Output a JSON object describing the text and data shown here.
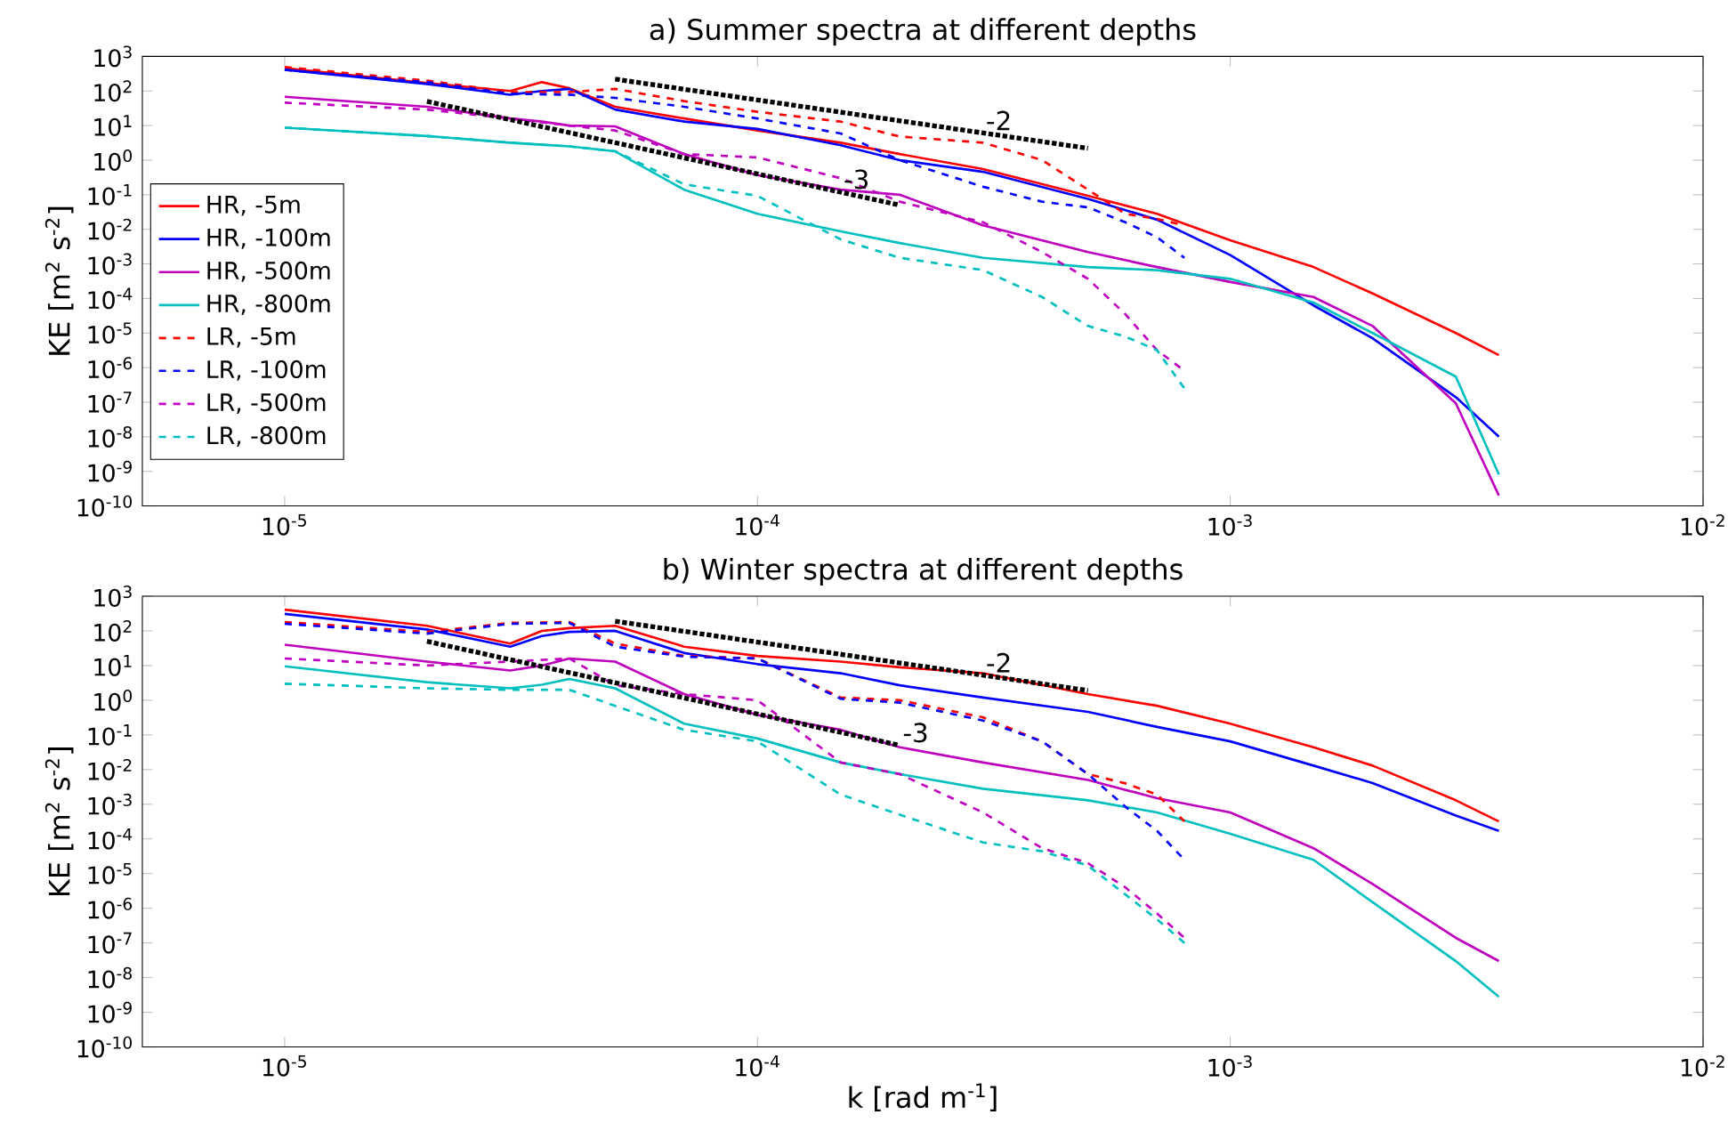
{
  "chart_data": [
    {
      "type": "line",
      "title": "a) Summer spectra at different depths",
      "ylabel": "KE [m$^{2}$ s$^{-2}$]",
      "log": "xy",
      "legend": "left",
      "marker": "none",
      "xlim": [
        5e-06,
        0.01
      ],
      "ylim": [
        1e-10,
        1000
      ],
      "xticks": [
        {
          "value": 1e-05,
          "label": "10$^{-5}$"
        },
        {
          "value": 0.0001,
          "label": "10$^{-4}$"
        },
        {
          "value": 0.001,
          "label": "10$^{-3}$"
        },
        {
          "value": 0.01,
          "label": "10$^{-2}$"
        }
      ],
      "yticks": [
        {
          "value": 1000,
          "label": "10$^{3}$"
        },
        {
          "value": 100,
          "label": "10$^{2}$"
        },
        {
          "value": 10,
          "label": "10$^{1}$"
        },
        {
          "value": 1,
          "label": "10$^{0}$"
        },
        {
          "value": 0.1,
          "label": "10$^{-1}$"
        },
        {
          "value": 0.01,
          "label": "10$^{-2}$"
        },
        {
          "value": 0.001,
          "label": "10$^{-3}$"
        },
        {
          "value": 0.0001,
          "label": "10$^{-4}$"
        },
        {
          "value": 1e-05,
          "label": "10$^{-5}$"
        },
        {
          "value": 1e-06,
          "label": "10$^{-6}$"
        },
        {
          "value": 1e-07,
          "label": "10$^{-7}$"
        },
        {
          "value": 1e-08,
          "label": "10$^{-8}$"
        },
        {
          "value": 1e-09,
          "label": "10$^{-9}$"
        },
        {
          "value": 1e-10,
          "label": "10$^{-10}$"
        }
      ],
      "series": [
        {
          "name": "HR, -5m",
          "color": "#ff0000",
          "line_style": "solid",
          "x": [
            1e-05,
            2e-05,
            3e-05,
            3.5e-05,
            4e-05,
            5e-05,
            7e-05,
            0.0001,
            0.00015,
            0.0002,
            0.0003,
            0.0005,
            0.0007,
            0.001,
            0.0015,
            0.002,
            0.003,
            0.0037
          ],
          "values": [
            460,
            170,
            100,
            180,
            120,
            35,
            16,
            7.2,
            3.2,
            1.5,
            0.55,
            0.093,
            0.028,
            0.0048,
            0.00081,
            0.00014,
            1e-05,
            2.3e-06
          ]
        },
        {
          "name": "HR, -100m",
          "color": "#0000ff",
          "line_style": "solid",
          "x": [
            1e-05,
            2e-05,
            3e-05,
            3.5e-05,
            4e-05,
            5e-05,
            7e-05,
            0.0001,
            0.00015,
            0.0002,
            0.0003,
            0.0005,
            0.0007,
            0.001,
            0.0015,
            0.002,
            0.003,
            0.0037
          ],
          "values": [
            410,
            160,
            78,
            100,
            115,
            29,
            13,
            8,
            2.7,
            1.0,
            0.46,
            0.076,
            0.019,
            0.0018,
            6.3e-05,
            7.1e-06,
            1.4e-07,
            1e-08
          ]
        },
        {
          "name": "HR, -500m",
          "color": "#bf00bf",
          "line_style": "solid",
          "x": [
            1e-05,
            2e-05,
            3e-05,
            3.5e-05,
            4e-05,
            5e-05,
            7e-05,
            0.0001,
            0.00015,
            0.0002,
            0.0003,
            0.0005,
            0.0007,
            0.001,
            0.0015,
            0.002,
            0.003,
            0.0037
          ],
          "values": [
            68,
            35,
            16,
            13,
            10,
            9.5,
            1.5,
            0.37,
            0.14,
            0.1,
            0.013,
            0.0022,
            0.00081,
            0.0003,
            0.00011,
            1.6e-05,
            9.3e-08,
            2e-10
          ]
        },
        {
          "name": "HR, -800m",
          "color": "#00bfbf",
          "line_style": "solid",
          "x": [
            1e-05,
            2e-05,
            3e-05,
            3.5e-05,
            4e-05,
            5e-05,
            7e-05,
            0.0001,
            0.00015,
            0.0002,
            0.0003,
            0.0005,
            0.0007,
            0.001,
            0.0015,
            0.002,
            0.003,
            0.0037
          ],
          "values": [
            8.7,
            5,
            3.2,
            2.8,
            2.5,
            1.8,
            0.14,
            0.028,
            0.0087,
            0.004,
            0.0015,
            0.00081,
            0.00066,
            0.00037,
            7.6e-05,
            1e-05,
            5.5e-07,
            8.1e-10
          ]
        },
        {
          "name": "LR, -5m",
          "color": "#ff0000",
          "line_style": "dashed",
          "x": [
            1e-05,
            2e-05,
            3e-05,
            4e-05,
            5e-05,
            7e-05,
            0.0001,
            0.00015,
            0.0002,
            0.0003,
            0.0004,
            0.0005,
            0.0006,
            0.0007,
            0.0008
          ],
          "values": [
            490,
            200,
            93,
            93,
            115,
            51,
            25,
            13,
            4.8,
            3.2,
            1.0,
            0.14,
            0.028,
            0.02,
            0.013
          ]
        },
        {
          "name": "LR, -100m",
          "color": "#0000ff",
          "line_style": "dashed",
          "x": [
            1e-05,
            2e-05,
            3e-05,
            4e-05,
            5e-05,
            7e-05,
            0.0001,
            0.00015,
            0.0002,
            0.0003,
            0.0004,
            0.0005,
            0.0006,
            0.0007,
            0.0008
          ],
          "values": [
            410,
            180,
            83,
            78,
            63,
            35,
            16,
            5.9,
            1.0,
            0.17,
            0.063,
            0.043,
            0.016,
            0.0059,
            0.0015
          ]
        },
        {
          "name": "LR, -500m",
          "color": "#bf00bf",
          "line_style": "dashed",
          "x": [
            1e-05,
            2e-05,
            3e-05,
            4e-05,
            5e-05,
            7e-05,
            0.0001,
            0.00015,
            0.0002,
            0.0003,
            0.0004,
            0.0005,
            0.0006,
            0.0007,
            0.0008
          ],
          "values": [
            46,
            29,
            16,
            10,
            7.2,
            1.5,
            1.2,
            0.3,
            0.063,
            0.016,
            0.0022,
            0.00037,
            3.5e-05,
            3.2e-06,
            8.1e-07
          ]
        },
        {
          "name": "LR, -800m",
          "color": "#00bfbf",
          "line_style": "dashed",
          "x": [
            1e-05,
            2e-05,
            3e-05,
            4e-05,
            5e-05,
            7e-05,
            0.0001,
            0.00015,
            0.0002,
            0.0003,
            0.0004,
            0.0005,
            0.0006,
            0.0007,
            0.0008
          ],
          "values": [
            8.7,
            5,
            3.2,
            2.5,
            1.8,
            0.2,
            0.093,
            0.0051,
            0.0015,
            0.00066,
            0.00011,
            1.6e-05,
            7.9e-06,
            3.2e-06,
            2.5e-07
          ]
        },
        {
          "color": "#000000",
          "line_style": "dotted",
          "x": [
            5e-05,
            0.0005
          ],
          "values": [
            220,
            2.2
          ]
        },
        {
          "color": "#000000",
          "line_style": "dotted",
          "x": [
            2e-05,
            0.0002
          ],
          "values": [
            50,
            0.05
          ]
        }
      ],
      "annotations": [
        {
          "text": "-2",
          "x": 0.0003,
          "y": 6.1
        },
        {
          "text": "-3",
          "x": 0.00015,
          "y": 0.12
        }
      ]
    },
    {
      "type": "line",
      "title": "b) Winter spectra at different depths",
      "xlabel": "k [rad m$^{-1}$]",
      "ylabel": "KE [m$^{2}$ s$^{-2}$]",
      "log": "xy",
      "marker": "none",
      "xlim": [
        5e-06,
        0.01
      ],
      "ylim": [
        1e-10,
        1000
      ],
      "xticks": [
        {
          "value": 1e-05,
          "label": "10$^{-5}$"
        },
        {
          "value": 0.0001,
          "label": "10$^{-4}$"
        },
        {
          "value": 0.001,
          "label": "10$^{-3}$"
        },
        {
          "value": 0.01,
          "label": "10$^{-2}$"
        }
      ],
      "yticks": [
        {
          "value": 1000,
          "label": "10$^{3}$"
        },
        {
          "value": 100,
          "label": "10$^{2}$"
        },
        {
          "value": 10,
          "label": "10$^{1}$"
        },
        {
          "value": 1,
          "label": "10$^{0}$"
        },
        {
          "value": 0.1,
          "label": "10$^{-1}$"
        },
        {
          "value": 0.01,
          "label": "10$^{-2}$"
        },
        {
          "value": 0.001,
          "label": "10$^{-3}$"
        },
        {
          "value": 0.0001,
          "label": "10$^{-4}$"
        },
        {
          "value": 1e-05,
          "label": "10$^{-5}$"
        },
        {
          "value": 1e-06,
          "label": "10$^{-6}$"
        },
        {
          "value": 1e-07,
          "label": "10$^{-7}$"
        },
        {
          "value": 1e-08,
          "label": "10$^{-8}$"
        },
        {
          "value": 1e-09,
          "label": "10$^{-9}$"
        },
        {
          "value": 1e-10,
          "label": "10$^{-10}$"
        }
      ],
      "series": [
        {
          "color": "#ff0000",
          "line_style": "solid",
          "x": [
            1e-05,
            2e-05,
            3e-05,
            3.5e-05,
            4e-05,
            5e-05,
            7e-05,
            0.0001,
            0.00015,
            0.0002,
            0.0003,
            0.0005,
            0.0007,
            0.001,
            0.0015,
            0.002,
            0.003,
            0.0037
          ],
          "values": [
            410,
            140,
            43,
            100,
            120,
            140,
            35,
            19,
            13,
            8.9,
            6,
            1.5,
            0.69,
            0.21,
            0.044,
            0.013,
            0.0013,
            0.00032
          ]
        },
        {
          "color": "#0000ff",
          "line_style": "solid",
          "x": [
            1e-05,
            2e-05,
            3e-05,
            3.5e-05,
            4e-05,
            5e-05,
            7e-05,
            0.0001,
            0.00015,
            0.0002,
            0.0003,
            0.0005,
            0.0007,
            0.001,
            0.0015,
            0.002,
            0.003,
            0.0037
          ],
          "values": [
            310,
            110,
            35,
            71,
            93,
            100,
            23,
            11,
            6,
            2.7,
            1.2,
            0.46,
            0.17,
            0.065,
            0.013,
            0.0041,
            0.00047,
            0.00017
          ]
        },
        {
          "color": "#bf00bf",
          "line_style": "solid",
          "x": [
            1e-05,
            2e-05,
            3e-05,
            3.5e-05,
            4e-05,
            5e-05,
            7e-05,
            0.0001,
            0.00015,
            0.0002,
            0.0003,
            0.0005,
            0.0007,
            0.001,
            0.0015,
            0.002,
            0.003,
            0.0037
          ],
          "values": [
            40,
            13,
            7.2,
            10,
            16,
            13,
            1.5,
            0.38,
            0.14,
            0.044,
            0.016,
            0.005,
            0.0015,
            0.00058,
            5.4e-05,
            5e-06,
            1.4e-07,
            3e-08
          ]
        },
        {
          "color": "#00bfbf",
          "line_style": "solid",
          "x": [
            1e-05,
            2e-05,
            3e-05,
            3.5e-05,
            4e-05,
            5e-05,
            7e-05,
            0.0001,
            0.00015,
            0.0002,
            0.0003,
            0.0005,
            0.0007,
            0.001,
            0.0015,
            0.002,
            0.003,
            0.0037
          ],
          "values": [
            9.5,
            3.3,
            2.2,
            2.8,
            4.1,
            2.2,
            0.21,
            0.079,
            0.016,
            0.0074,
            0.0028,
            0.0013,
            0.00058,
            0.00014,
            2.5e-05,
            1.5e-06,
            3e-08,
            2.8e-09
          ]
        },
        {
          "color": "#ff0000",
          "line_style": "dashed",
          "x": [
            1e-05,
            2e-05,
            3e-05,
            4e-05,
            5e-05,
            7e-05,
            0.0001,
            0.00015,
            0.0002,
            0.0003,
            0.0004,
            0.0005,
            0.0006,
            0.0007,
            0.0008
          ],
          "values": [
            180,
            93,
            170,
            180,
            43,
            19,
            16,
            1.2,
            1.0,
            0.32,
            0.065,
            0.0074,
            0.004,
            0.0019,
            0.00032
          ]
        },
        {
          "color": "#0000ff",
          "line_style": "dashed",
          "x": [
            1e-05,
            2e-05,
            3e-05,
            4e-05,
            5e-05,
            7e-05,
            0.0001,
            0.00015,
            0.0002,
            0.0003,
            0.0004,
            0.0005,
            0.0006,
            0.0007,
            0.0008
          ],
          "values": [
            160,
            83,
            160,
            170,
            35,
            18,
            16,
            1.1,
            0.85,
            0.26,
            0.065,
            0.0074,
            0.00085,
            0.00017,
            2.5e-05
          ]
        },
        {
          "color": "#bf00bf",
          "line_style": "dashed",
          "x": [
            1e-05,
            2e-05,
            3e-05,
            4e-05,
            5e-05,
            7e-05,
            0.0001,
            0.00015,
            0.0002,
            0.0003,
            0.0004,
            0.0005,
            0.0006,
            0.0007,
            0.0008
          ],
          "values": [
            16,
            10,
            13,
            16,
            2.7,
            1.5,
            1.0,
            0.016,
            0.0074,
            0.00058,
            5.4e-05,
            2e-05,
            4e-06,
            7.1e-07,
            1.4e-07
          ]
        },
        {
          "color": "#00bfbf",
          "line_style": "dashed",
          "x": [
            1e-05,
            2e-05,
            3e-05,
            4e-05,
            5e-05,
            7e-05,
            0.0001,
            0.00015,
            0.0002,
            0.0003,
            0.0004,
            0.0005,
            0.0006,
            0.0007,
            0.0008
          ],
          "values": [
            3.0,
            2.2,
            2.0,
            2.0,
            0.69,
            0.14,
            0.065,
            0.0019,
            0.0005,
            7.9e-05,
            4.4e-05,
            1.7e-05,
            2.5e-06,
            4.8e-07,
            1e-07
          ]
        },
        {
          "color": "#000000",
          "line_style": "dotted",
          "x": [
            5e-05,
            0.0005
          ],
          "values": [
            190,
            1.9
          ]
        },
        {
          "color": "#000000",
          "line_style": "dotted",
          "x": [
            2e-05,
            0.0002
          ],
          "values": [
            50,
            0.05
          ]
        }
      ],
      "annotations": [
        {
          "text": "-2",
          "x": 0.0003,
          "y": 5.3
        },
        {
          "text": "-3",
          "x": 0.0002,
          "y": 0.05
        }
      ]
    }
  ]
}
